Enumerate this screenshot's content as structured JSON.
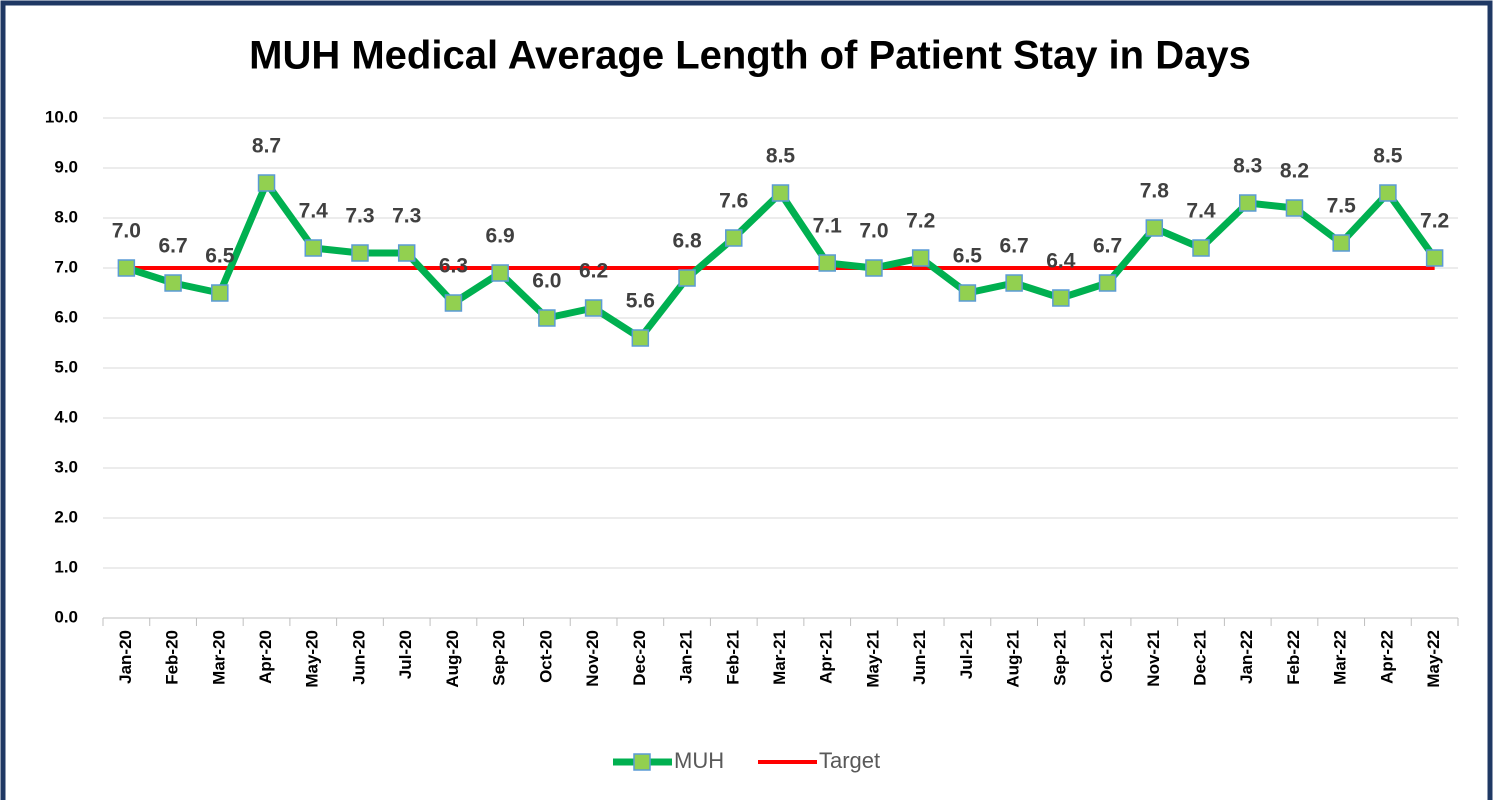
{
  "chart_data": {
    "type": "line",
    "title": "MUH Medical Average Length of Patient Stay in Days",
    "categories": [
      "Jan-20",
      "Feb-20",
      "Mar-20",
      "Apr-20",
      "May-20",
      "Jun-20",
      "Jul-20",
      "Aug-20",
      "Sep-20",
      "Oct-20",
      "Nov-20",
      "Dec-20",
      "Jan-21",
      "Feb-21",
      "Mar-21",
      "Apr-21",
      "May-21",
      "Jun-21",
      "Jul-21",
      "Aug-21",
      "Sep-21",
      "Oct-21",
      "Nov-21",
      "Dec-21",
      "Jan-22",
      "Feb-22",
      "Mar-22",
      "Apr-22",
      "May-22"
    ],
    "series": [
      {
        "name": "MUH",
        "color": "#00b050",
        "marker_color": "#92d050",
        "values": [
          7.0,
          6.7,
          6.5,
          8.7,
          7.4,
          7.3,
          7.3,
          6.3,
          6.9,
          6.0,
          6.2,
          5.6,
          6.8,
          7.6,
          8.5,
          7.1,
          7.0,
          7.2,
          6.5,
          6.7,
          6.4,
          6.7,
          7.8,
          7.4,
          8.3,
          8.2,
          7.5,
          8.5,
          7.2
        ],
        "value_labels": [
          "7.0",
          "6.7",
          "6.5",
          "8.7",
          "7.4",
          "7.3",
          "7.3",
          "6.3",
          "6.9",
          "6.0",
          "6.2",
          "5.6",
          "6.8",
          "7.6",
          "8.5",
          "7.1",
          "7.0",
          "7.2",
          "6.5",
          "6.7",
          "6.4",
          "6.7",
          "7.8",
          "7.4",
          "8.3",
          "8.2",
          "7.5",
          "8.5",
          "7.2"
        ]
      },
      {
        "name": "Target",
        "color": "#ff0000",
        "values": [
          7,
          7,
          7,
          7,
          7,
          7,
          7,
          7,
          7,
          7,
          7,
          7,
          7,
          7,
          7,
          7,
          7,
          7,
          7,
          7,
          7,
          7,
          7,
          7,
          7,
          7,
          7,
          7,
          7
        ]
      }
    ],
    "ylim": [
      0,
      10
    ],
    "yticks": [
      {
        "value": 0,
        "label": "0.0"
      },
      {
        "value": 1,
        "label": "1.0"
      },
      {
        "value": 2,
        "label": "2.0"
      },
      {
        "value": 3,
        "label": "3.0"
      },
      {
        "value": 4,
        "label": "4.0"
      },
      {
        "value": 5,
        "label": "5.0"
      },
      {
        "value": 6,
        "label": "6.0"
      },
      {
        "value": 7,
        "label": "7.0"
      },
      {
        "value": 8,
        "label": "8.0"
      },
      {
        "value": 9,
        "label": "9.0"
      },
      {
        "value": 10,
        "label": "10.0"
      }
    ],
    "grid": true,
    "legend": "bottom"
  }
}
